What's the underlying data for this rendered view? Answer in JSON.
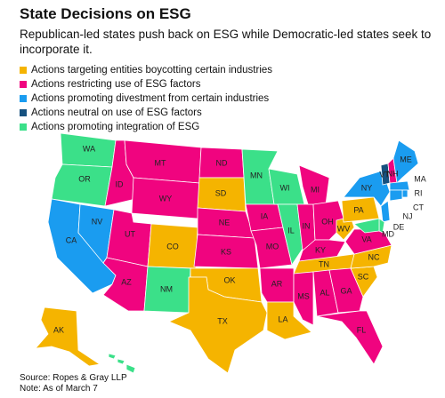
{
  "title": "State Decisions on ESG",
  "subtitle": "Republican-led states push back on ESG while Democratic-led states seek to incorporate it.",
  "legend": [
    {
      "label": "Actions targeting entities boycotting certain industries",
      "color": "#f5b400"
    },
    {
      "label": "Actions restricting use of ESG factors",
      "color": "#f0047f"
    },
    {
      "label": "Actions promoting divestment from certain industries",
      "color": "#1a9cf0"
    },
    {
      "label": "Actions neutral on use of ESG factors",
      "color": "#16517f"
    },
    {
      "label": "Actions promoting integration of ESG",
      "color": "#3be089"
    }
  ],
  "states": [
    {
      "label": "WA",
      "category": 4
    },
    {
      "label": "OR",
      "category": 4
    },
    {
      "label": "CA",
      "category": 2
    },
    {
      "label": "NV",
      "category": 2
    },
    {
      "label": "ID",
      "category": 1
    },
    {
      "label": "MT",
      "category": 1
    },
    {
      "label": "WY",
      "category": 1
    },
    {
      "label": "UT",
      "category": 1
    },
    {
      "label": "AZ",
      "category": 1
    },
    {
      "label": "CO",
      "category": 0
    },
    {
      "label": "NM",
      "category": 4
    },
    {
      "label": "ND",
      "category": 1
    },
    {
      "label": "SD",
      "category": 0
    },
    {
      "label": "NE",
      "category": 1
    },
    {
      "label": "KS",
      "category": 1
    },
    {
      "label": "OK",
      "category": 0
    },
    {
      "label": "TX",
      "category": 0
    },
    {
      "label": "MN",
      "category": 4
    },
    {
      "label": "IA",
      "category": 1
    },
    {
      "label": "MO",
      "category": 1
    },
    {
      "label": "AR",
      "category": 1
    },
    {
      "label": "LA",
      "category": 0
    },
    {
      "label": "WI",
      "category": 4
    },
    {
      "label": "IL",
      "category": 4
    },
    {
      "label": "IN",
      "category": 1
    },
    {
      "label": "MI",
      "category": 1
    },
    {
      "label": "OH",
      "category": 1
    },
    {
      "label": "KY",
      "category": 1
    },
    {
      "label": "TN",
      "category": 0
    },
    {
      "label": "MS",
      "category": 1
    },
    {
      "label": "AL",
      "category": 1
    },
    {
      "label": "GA",
      "category": 1
    },
    {
      "label": "FL",
      "category": 1
    },
    {
      "label": "SC",
      "category": 0
    },
    {
      "label": "NC",
      "category": 0
    },
    {
      "label": "VA",
      "category": 1
    },
    {
      "label": "WV",
      "category": 0
    },
    {
      "label": "PA",
      "category": 0
    },
    {
      "label": "NY",
      "category": 2
    },
    {
      "label": "VT",
      "category": 3
    },
    {
      "label": "NH",
      "category": 1
    },
    {
      "label": "ME",
      "category": 2
    },
    {
      "label": "MA",
      "category": 2
    },
    {
      "label": "RI",
      "category": 2
    },
    {
      "label": "CT",
      "category": 2
    },
    {
      "label": "NJ",
      "category": 2
    },
    {
      "label": "DE",
      "category": 4
    },
    {
      "label": "MD",
      "category": 4
    },
    {
      "label": "AK",
      "category": 0
    },
    {
      "label": null,
      "category": 4
    }
  ],
  "source": "Source: Ropes & Gray LLP",
  "note": "Note: As of March 7"
}
